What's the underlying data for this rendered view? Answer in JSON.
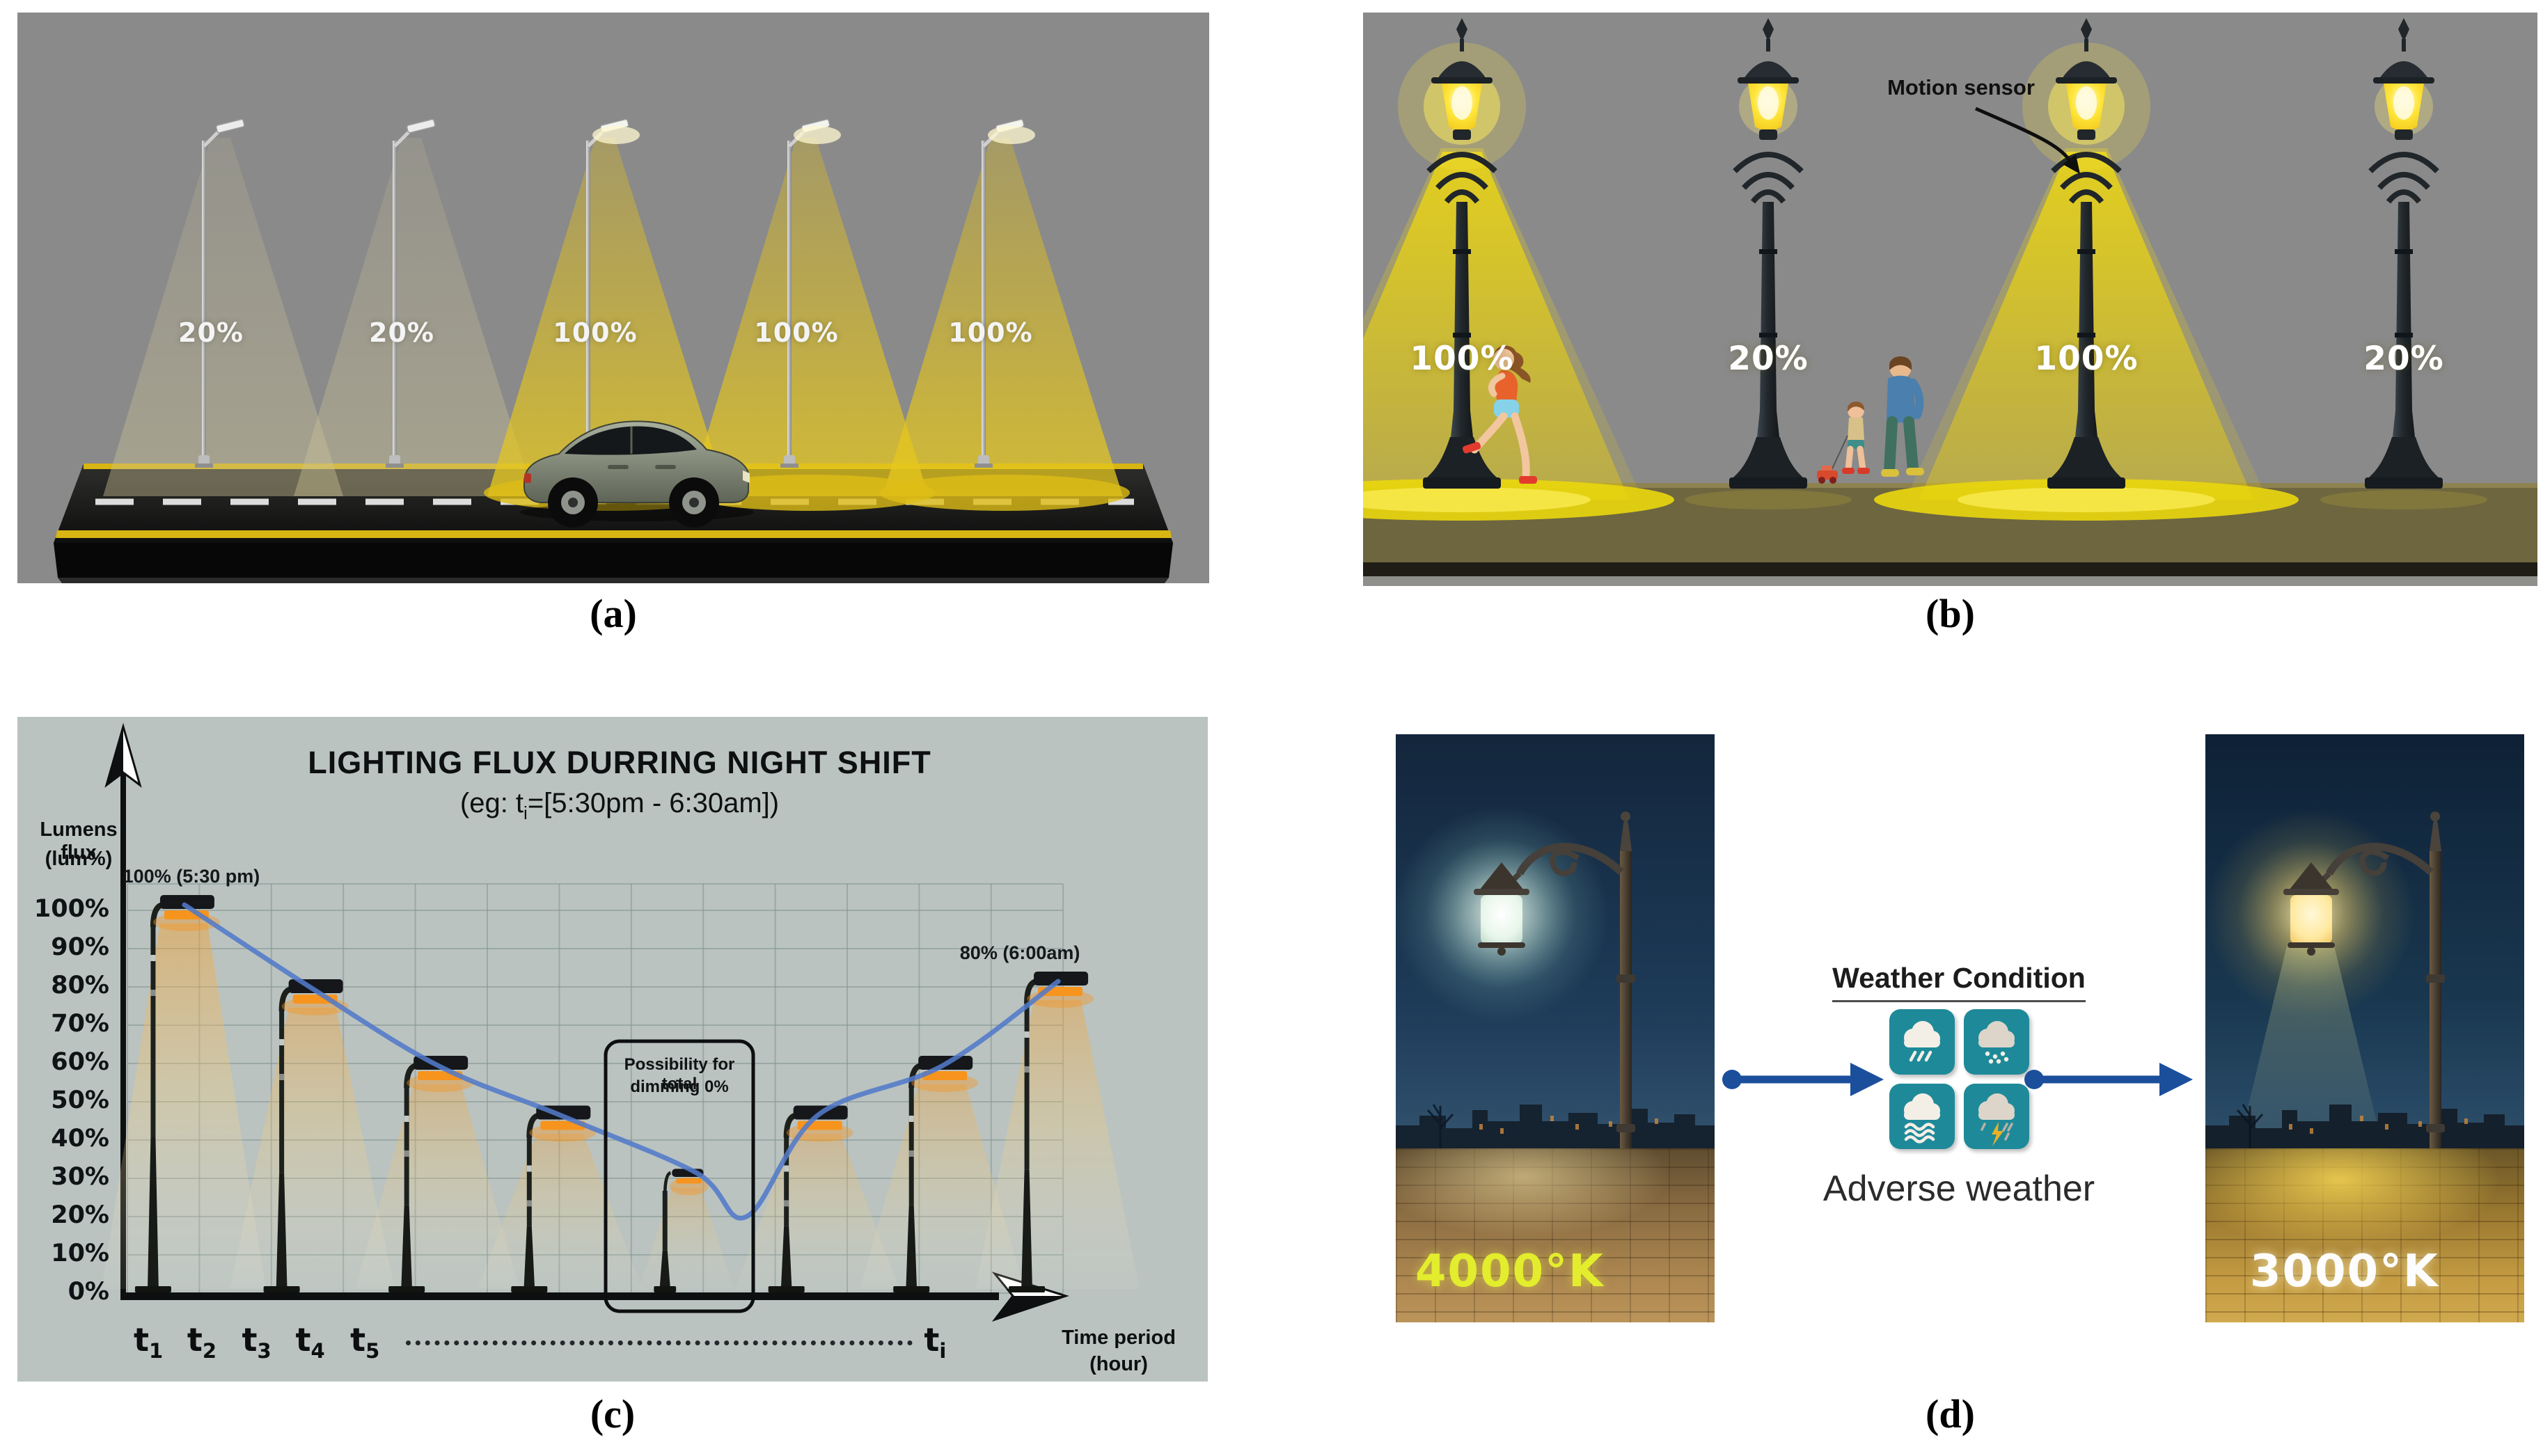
{
  "figure_captions": {
    "a": "(a)",
    "b": "(b)",
    "c": "(c)",
    "d": "(d)"
  },
  "colors": {
    "panel_ab_background": "#8a8a8a",
    "panel_c_background": "#bac3c0",
    "beam_yellow": "#e8d20a",
    "lamp_head_orange": "#f7941d",
    "curve_blue": "#527ac8",
    "weather_tile_teal": "#1e8a99",
    "flow_arrow_blue": "#1b4f9c",
    "label_4000k": "#e3ed2d",
    "label_3000k": "#ffffff"
  },
  "panel_a": {
    "lamp_labels": [
      "20%",
      "20%",
      "100%",
      "100%",
      "100%"
    ]
  },
  "panel_b": {
    "motion_sensor_label": "Motion sensor",
    "lamp_labels": [
      "100%",
      "20%",
      "100%",
      "20%"
    ]
  },
  "panel_c": {
    "chart_data": {
      "type": "line",
      "title": "LIGHTING FLUX DURRING NIGHT SHIFT",
      "subtitle_prefix": "(eg: t",
      "subtitle_sub": "i",
      "subtitle_suffix": "=[5:30pm - 6:30am])",
      "ylabel_line1": "Lumens flux",
      "ylabel_line2": "(lum%)",
      "xlabel_line1": "Time period",
      "xlabel_line2": "(hour)",
      "ylim": [
        0,
        100
      ],
      "yticks": [
        "100%",
        "90%",
        "80%",
        "70%",
        "60%",
        "50%",
        "40%",
        "30%",
        "20%",
        "10%",
        "0%"
      ],
      "xticks": [
        {
          "base": "t",
          "sub": "1",
          "x_pct": 11.4
        },
        {
          "base": "t",
          "sub": "2",
          "x_pct": 15.9
        },
        {
          "base": "t",
          "sub": "3",
          "x_pct": 20.5
        },
        {
          "base": "t",
          "sub": "4",
          "x_pct": 25.0
        },
        {
          "base": "t",
          "sub": "5",
          "x_pct": 29.6
        },
        {
          "base": "t",
          "sub": "i",
          "x_pct": 77.8
        }
      ],
      "grid": true,
      "legend": false,
      "curve_color": "#527ac8",
      "lamps": [
        {
          "x_pct": 11.4,
          "flux": 100
        },
        {
          "x_pct": 22.2,
          "flux": 78
        },
        {
          "x_pct": 32.7,
          "flux": 58
        },
        {
          "x_pct": 43.0,
          "flux": 45
        },
        {
          "x_pct": 54.4,
          "flux": 30,
          "small": true
        },
        {
          "x_pct": 64.6,
          "flux": 45
        },
        {
          "x_pct": 75.1,
          "flux": 58
        },
        {
          "x_pct": 84.8,
          "flux": 80
        }
      ],
      "curve_min_flux": 20,
      "annotations": [
        {
          "text": "100% (5:30 pm)",
          "lamp": 0,
          "dx": 10
        },
        {
          "text": "80% (6:00am)",
          "lamp": 7,
          "dx": -55
        }
      ],
      "dimming_box_line1": "Possibility for total",
      "dimming_box_line2": "dimming 0%"
    }
  },
  "panel_d": {
    "weather_heading": "Weather Condition",
    "adverse_label": "Adverse weather",
    "left_photo_label": "4000°K",
    "right_photo_label": "3000°K",
    "weather_icons": [
      "rain-cloud-icon",
      "snow-cloud-icon",
      "fog-cloud-icon",
      "thunderstorm-cloud-icon"
    ]
  }
}
